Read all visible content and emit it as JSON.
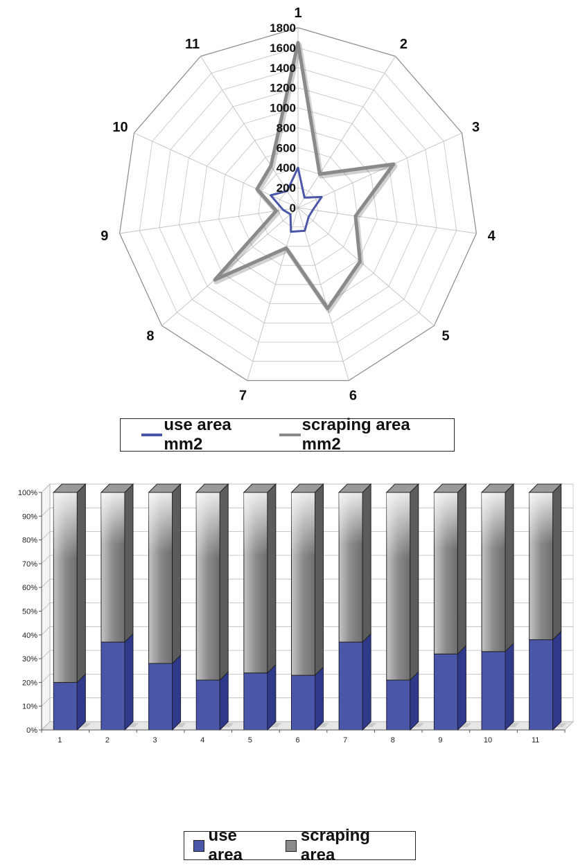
{
  "chart_data": [
    {
      "type": "radar",
      "categories": [
        "1",
        "2",
        "3",
        "4",
        "5",
        "6",
        "7",
        "8",
        "9",
        "10",
        "11"
      ],
      "series": [
        {
          "name": "use area mm2",
          "color": "#4a56a8",
          "values": [
            400,
            120,
            260,
            150,
            140,
            240,
            250,
            100,
            150,
            300,
            200
          ]
        },
        {
          "name": "scraping area mm2",
          "color": "#8a8a8a",
          "values": [
            1650,
            400,
            1050,
            580,
            820,
            1050,
            420,
            1100,
            220,
            450,
            500
          ]
        }
      ],
      "r_ticks": [
        "0",
        "200",
        "400",
        "600",
        "800",
        "1000",
        "1200",
        "1400",
        "1600",
        "1800"
      ],
      "rlim": [
        0,
        1800
      ],
      "grid": true,
      "legend": "bottom"
    },
    {
      "type": "bar",
      "stacked": "percent",
      "categories": [
        "1",
        "2",
        "3",
        "4",
        "5",
        "6",
        "7",
        "8",
        "9",
        "10",
        "11"
      ],
      "series": [
        {
          "name": "use area",
          "color": "#4a56a8",
          "values": [
            20,
            37,
            28,
            21,
            24,
            23,
            37,
            21,
            32,
            33,
            38
          ]
        },
        {
          "name": "scraping area",
          "color": "#8a8a8a",
          "values": [
            80,
            63,
            72,
            79,
            76,
            77,
            63,
            79,
            68,
            67,
            62
          ]
        }
      ],
      "y_ticks": [
        "0%",
        "10%",
        "20%",
        "30%",
        "40%",
        "50%",
        "60%",
        "70%",
        "80%",
        "90%",
        "100%"
      ],
      "ylim": [
        0,
        100
      ],
      "grid": true,
      "legend": "bottom"
    }
  ]
}
